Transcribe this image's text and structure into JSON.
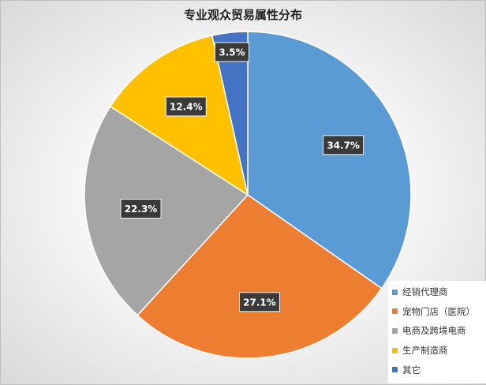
{
  "chart_data": {
    "type": "pie",
    "title": "专业观众贸易属性分布",
    "slices": [
      {
        "name": "经销代理商",
        "value": 34.7,
        "label": "34.7%",
        "color": "#5b9bd5"
      },
      {
        "name": "宠物门店（医院）",
        "value": 27.1,
        "label": "27.1%",
        "color": "#ed7d31"
      },
      {
        "name": "电商及跨境电商",
        "value": 22.3,
        "label": "22.3%",
        "color": "#a5a5a5"
      },
      {
        "name": "生产制造商",
        "value": 12.4,
        "label": "12.4%",
        "color": "#ffc000"
      },
      {
        "name": "其它",
        "value": 3.5,
        "label": "3.5%",
        "color": "#4472c4"
      }
    ],
    "start_angle": "12 o'clock",
    "direction": "clockwise",
    "legend_position": "bottom-right"
  }
}
